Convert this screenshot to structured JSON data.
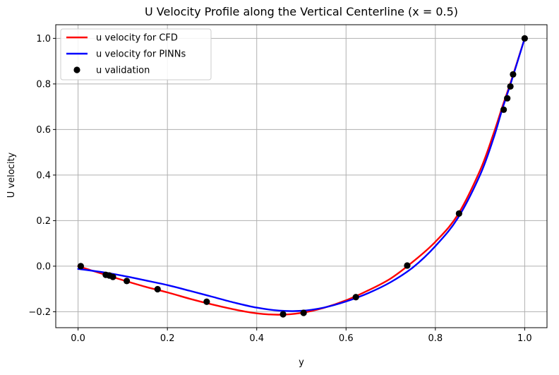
{
  "chart_data": {
    "type": "line",
    "title": "U Velocity Profile along the Vertical Centerline (x = 0.5)",
    "xlabel": "y",
    "ylabel": "U velocity",
    "xlim": [
      -0.05,
      1.05
    ],
    "ylim": [
      -0.27,
      1.06
    ],
    "xticks": [
      0.0,
      0.2,
      0.4,
      0.6,
      0.8,
      1.0
    ],
    "xtick_labels": [
      "0.0",
      "0.2",
      "0.4",
      "0.6",
      "0.8",
      "1.0"
    ],
    "yticks": [
      -0.2,
      0.0,
      0.2,
      0.4,
      0.6,
      0.8,
      1.0
    ],
    "ytick_labels": [
      "−0.2",
      "0.0",
      "0.2",
      "0.4",
      "0.6",
      "0.8",
      "1.0"
    ],
    "grid": true,
    "legend_position": "top-left",
    "series": [
      {
        "name": "u velocity for CFD",
        "kind": "line",
        "color": "#ff0000",
        "x": [
          0.0,
          0.05,
          0.1,
          0.15,
          0.2,
          0.25,
          0.3,
          0.35,
          0.4,
          0.45,
          0.5,
          0.55,
          0.6,
          0.65,
          0.7,
          0.75,
          0.8,
          0.85,
          0.9,
          0.93,
          0.95,
          0.97,
          1.0
        ],
        "y": [
          0.0,
          -0.031,
          -0.061,
          -0.09,
          -0.115,
          -0.143,
          -0.168,
          -0.19,
          -0.207,
          -0.213,
          -0.205,
          -0.183,
          -0.15,
          -0.106,
          -0.054,
          0.02,
          0.107,
          0.225,
          0.42,
          0.58,
          0.7,
          0.815,
          1.0
        ]
      },
      {
        "name": "u velocity for PINNs",
        "kind": "line",
        "color": "#0000ff",
        "x": [
          0.0,
          0.05,
          0.1,
          0.15,
          0.2,
          0.25,
          0.3,
          0.35,
          0.4,
          0.45,
          0.5,
          0.55,
          0.6,
          0.65,
          0.7,
          0.75,
          0.8,
          0.85,
          0.9,
          0.93,
          0.95,
          0.97,
          1.0
        ],
        "y": [
          -0.012,
          -0.025,
          -0.042,
          -0.062,
          -0.083,
          -0.108,
          -0.134,
          -0.16,
          -0.182,
          -0.195,
          -0.196,
          -0.182,
          -0.155,
          -0.118,
          -0.07,
          -0.005,
          0.088,
          0.21,
          0.4,
          0.56,
          0.69,
          0.81,
          1.0
        ]
      },
      {
        "name": "u validation",
        "kind": "scatter",
        "color": "#000000",
        "x": [
          0.006,
          0.062,
          0.07,
          0.078,
          0.109,
          0.178,
          0.288,
          0.459,
          0.505,
          0.622,
          0.737,
          0.853,
          0.953,
          0.961,
          0.968,
          0.974,
          1.0
        ],
        "y": [
          0.0,
          -0.038,
          -0.041,
          -0.047,
          -0.065,
          -0.101,
          -0.156,
          -0.211,
          -0.205,
          -0.136,
          0.003,
          0.231,
          0.687,
          0.737,
          0.789,
          0.842,
          1.0
        ]
      }
    ]
  }
}
